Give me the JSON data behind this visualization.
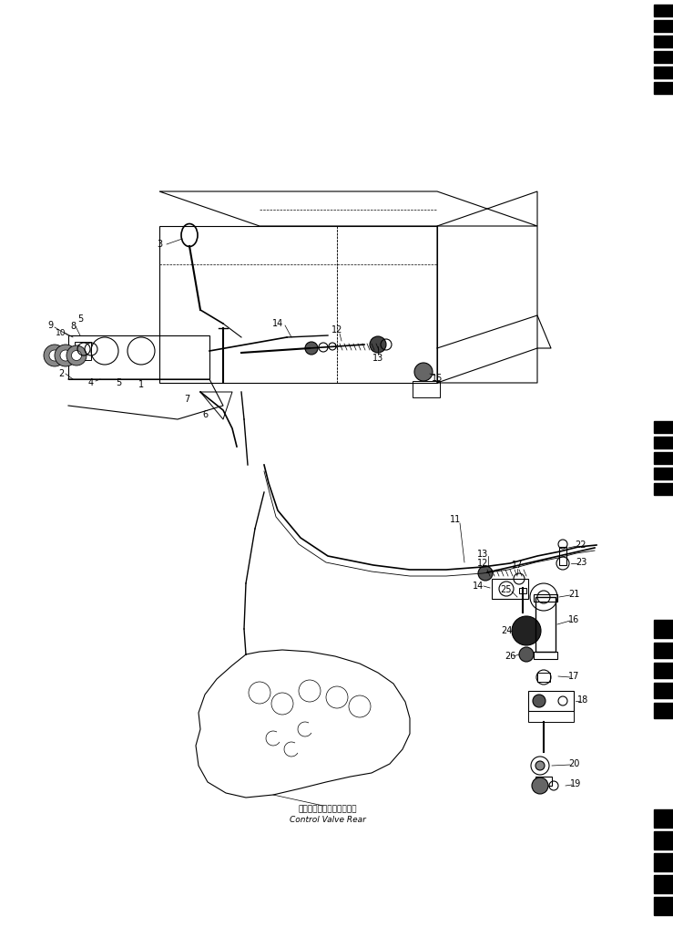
{
  "bg_color": "#ffffff",
  "fig_width": 7.39,
  "fig_height": 10.28,
  "dpi": 100,
  "label_jp": "コントロールバルブリヤー",
  "label_en": "Control Valve Rear"
}
